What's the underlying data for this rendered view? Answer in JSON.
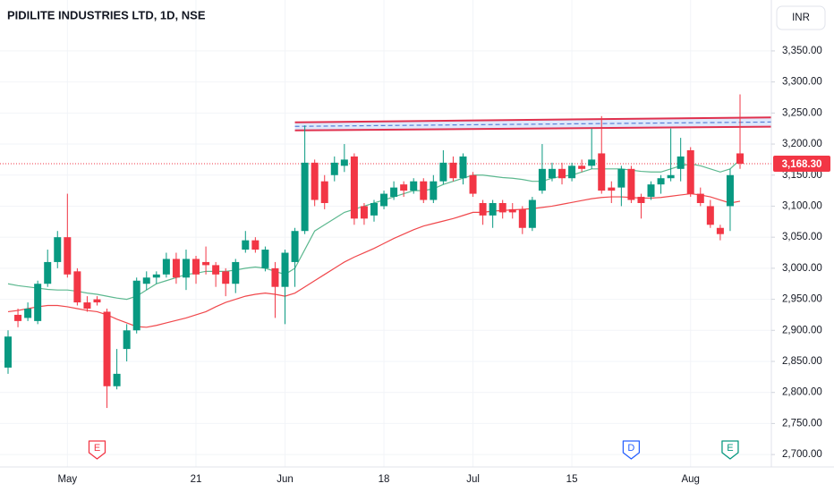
{
  "chart_data": {
    "type": "candlestick",
    "title": "PIDILITE INDUSTRIES LTD, 1D, NSE",
    "currency": "INR",
    "categories": [
      null,
      null,
      null,
      null,
      null,
      null,
      "May",
      null,
      null,
      null,
      null,
      null,
      null,
      null,
      null,
      null,
      null,
      null,
      null,
      "21",
      null,
      null,
      null,
      null,
      null,
      null,
      null,
      null,
      "Jun",
      null,
      null,
      null,
      null,
      null,
      null,
      null,
      null,
      null,
      "18",
      null,
      null,
      null,
      null,
      null,
      null,
      null,
      null,
      "Jul",
      null,
      null,
      null,
      null,
      null,
      null,
      null,
      null,
      null,
      "15",
      null,
      null,
      null,
      null,
      null,
      null,
      null,
      null,
      null,
      null,
      null,
      "Aug",
      null,
      null,
      null,
      null,
      null
    ],
    "open": [
      2840,
      2925,
      2920,
      2915,
      2975,
      3010,
      3050,
      2995,
      2945,
      2950,
      2930,
      2810,
      2870,
      2900,
      2975,
      2985,
      2990,
      3015,
      2985,
      3015,
      3010,
      3005,
      2995,
      2975,
      3030,
      3045,
      3000,
      3000,
      2970,
      3010,
      3060,
      3170,
      3140,
      3150,
      3165,
      3180,
      3100,
      3085,
      3100,
      3115,
      3135,
      3125,
      3140,
      3110,
      3140,
      3170,
      3145,
      3150,
      3105,
      3085,
      3105,
      3095,
      3095,
      3065,
      3125,
      3145,
      3160,
      3145,
      3165,
      3165,
      3185,
      3130,
      3130,
      3160,
      3115,
      3115,
      3135,
      3145,
      3160,
      3190,
      3120,
      3100,
      3065,
      3100,
      3185
    ],
    "high": [
      2900,
      2935,
      2945,
      2980,
      3030,
      3060,
      3120,
      3000,
      2955,
      2955,
      2935,
      2870,
      2910,
      2985,
      2995,
      2995,
      3025,
      3025,
      3030,
      3020,
      3035,
      3010,
      3000,
      3015,
      3060,
      3050,
      3035,
      3010,
      3030,
      3065,
      3230,
      3175,
      3150,
      3180,
      3200,
      3185,
      3105,
      3110,
      3125,
      3140,
      3140,
      3145,
      3145,
      3150,
      3190,
      3180,
      3185,
      3155,
      3110,
      3110,
      3110,
      3105,
      3100,
      3115,
      3200,
      3170,
      3170,
      3170,
      3175,
      3225,
      3245,
      3140,
      3165,
      3165,
      3120,
      3140,
      3150,
      3225,
      3210,
      3195,
      3130,
      3110,
      3070,
      3160,
      3280
    ],
    "low": [
      2830,
      2905,
      2915,
      2910,
      2970,
      3000,
      2985,
      2940,
      2930,
      2940,
      2775,
      2805,
      2850,
      2895,
      2965,
      2975,
      2985,
      2975,
      2965,
      2975,
      2990,
      2970,
      2955,
      2960,
      3025,
      3025,
      2995,
      2920,
      2910,
      2970,
      3055,
      3100,
      3095,
      3140,
      3155,
      3070,
      3070,
      3075,
      3095,
      3110,
      3115,
      3120,
      3105,
      3105,
      3135,
      3140,
      3135,
      3115,
      3070,
      3065,
      3080,
      3080,
      3055,
      3060,
      3120,
      3140,
      3135,
      3140,
      3155,
      3160,
      3120,
      3105,
      3100,
      3105,
      3080,
      3110,
      3120,
      3140,
      3140,
      3115,
      3100,
      3065,
      3045,
      3060,
      3160
    ],
    "close": [
      2890,
      2915,
      2935,
      2975,
      3010,
      3050,
      2990,
      2945,
      2935,
      2945,
      2810,
      2830,
      2900,
      2980,
      2985,
      2990,
      3015,
      2985,
      3015,
      2990,
      3005,
      2990,
      2975,
      3010,
      3045,
      3030,
      3030,
      2970,
      3025,
      3060,
      3170,
      3110,
      3105,
      3170,
      3175,
      3080,
      3080,
      3105,
      3120,
      3130,
      3125,
      3140,
      3110,
      3140,
      3170,
      3145,
      3180,
      3120,
      3085,
      3105,
      3090,
      3090,
      3065,
      3110,
      3160,
      3160,
      3145,
      3165,
      3160,
      3175,
      3125,
      3125,
      3160,
      3110,
      3105,
      3135,
      3145,
      3150,
      3180,
      3120,
      3105,
      3070,
      3055,
      3150,
      3168.3
    ],
    "up_color": "#089981",
    "down_color": "#f23645",
    "series": [
      {
        "color": "#5cb88f",
        "values": [
          2975,
          2972,
          2970,
          2968,
          2966,
          2965,
          2965,
          2963,
          2960,
          2958,
          2955,
          2952,
          2950,
          2955,
          2965,
          2975,
          2980,
          2985,
          2990,
          2992,
          2995,
          2995,
          2995,
          2997,
          3000,
          3002,
          3000,
          2995,
          2990,
          3000,
          3030,
          3060,
          3070,
          3080,
          3090,
          3095,
          3100,
          3105,
          3110,
          3115,
          3120,
          3125,
          3125,
          3128,
          3135,
          3140,
          3145,
          3150,
          3150,
          3148,
          3146,
          3145,
          3143,
          3140,
          3140,
          3145,
          3148,
          3150,
          3155,
          3160,
          3160,
          3160,
          3160,
          3158,
          3156,
          3155,
          3155,
          3160,
          3165,
          3168,
          3165,
          3160,
          3155,
          3160,
          3175
        ]
      },
      {
        "color": "#f0474b",
        "values": [
          2930,
          2932,
          2935,
          2938,
          2940,
          2940,
          2938,
          2935,
          2932,
          2930,
          2925,
          2918,
          2912,
          2906,
          2905,
          2908,
          2912,
          2916,
          2920,
          2925,
          2930,
          2938,
          2945,
          2950,
          2955,
          2958,
          2960,
          2958,
          2955,
          2960,
          2970,
          2980,
          2990,
          3000,
          3010,
          3018,
          3025,
          3032,
          3040,
          3048,
          3055,
          3062,
          3068,
          3072,
          3076,
          3080,
          3085,
          3090,
          3090,
          3092,
          3093,
          3094,
          3095,
          3096,
          3098,
          3100,
          3103,
          3106,
          3109,
          3112,
          3114,
          3115,
          3115,
          3114,
          3113,
          3113,
          3114,
          3116,
          3118,
          3120,
          3118,
          3115,
          3110,
          3105,
          3108
        ]
      }
    ],
    "channel": {
      "upper": [
        3235,
        3243
      ],
      "lower": [
        3222,
        3228
      ],
      "color": "#e0314e",
      "fill": "#d6e4fb",
      "mid_color": "#5b7fd6"
    },
    "last_price": 3168.3,
    "last_price_label": "3,168.30",
    "events": [
      {
        "label": "E",
        "color": "#f23645"
      },
      {
        "label": "D",
        "color": "#2962ff"
      },
      {
        "label": "E",
        "color": "#089981"
      }
    ],
    "ylim": [
      2680,
      3432
    ],
    "yticks": [
      {
        "value": 2700,
        "label": "2,700.00"
      },
      {
        "value": 2750,
        "label": "2,750.00"
      },
      {
        "value": 2800,
        "label": "2,800.00"
      },
      {
        "value": 2850,
        "label": "2,850.00"
      },
      {
        "value": 2900,
        "label": "2,900.00"
      },
      {
        "value": 2950,
        "label": "2,950.00"
      },
      {
        "value": 3000,
        "label": "3,000.00"
      },
      {
        "value": 3050,
        "label": "3,050.00"
      },
      {
        "value": 3100,
        "label": "3,100.00"
      },
      {
        "value": 3150,
        "label": "3,150.00"
      },
      {
        "value": 3200,
        "label": "3,200.00"
      },
      {
        "value": 3250,
        "label": "3,250.00"
      },
      {
        "value": 3300,
        "label": "3,300.00"
      },
      {
        "value": 3350,
        "label": "3,350.00"
      }
    ],
    "grid": true
  }
}
